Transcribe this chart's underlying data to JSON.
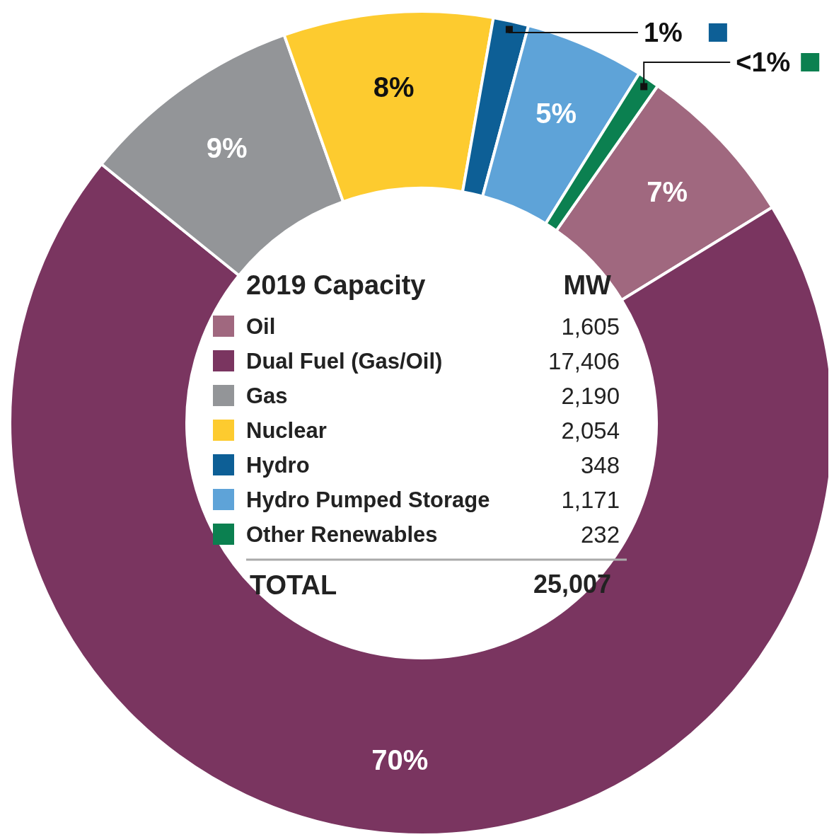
{
  "chart_data": {
    "type": "donut",
    "legend_title": "2019 Capacity",
    "categories": [
      "Oil",
      "Dual Fuel (Gas/Oil)",
      "Gas",
      "Nuclear",
      "Hydro",
      "Hydro Pumped Storage",
      "Other Renewables"
    ],
    "values": [
      6.5,
      69.6,
      8.76,
      8.21,
      1.39,
      4.68,
      0.86
    ],
    "colors": [
      "#a0687f",
      "#7a3560",
      "#939598",
      "#fdcb2f",
      "#0d5f96",
      "#5ea3d8",
      "#0b8050"
    ],
    "value_labels": [
      "7%",
      "70%",
      "9%",
      "8%",
      "1%",
      "5%",
      "<1%"
    ],
    "legend": "center",
    "annotations": [
      "MW",
      "1,605",
      "17,406",
      "2,190",
      "2,054",
      "348",
      "1,171",
      "232",
      "TOTAL",
      "25,007"
    ]
  }
}
